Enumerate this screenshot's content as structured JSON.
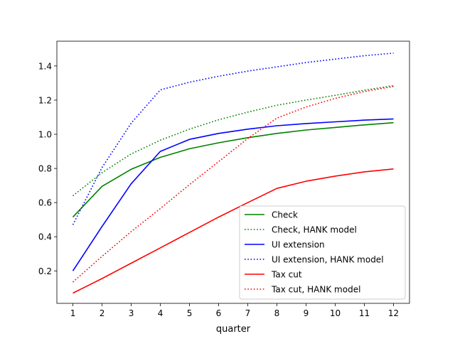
{
  "chart_data": {
    "type": "line",
    "xlabel": "quarter",
    "ylabel": "",
    "title": "",
    "x": [
      1,
      2,
      3,
      4,
      5,
      6,
      7,
      8,
      9,
      10,
      11,
      12
    ],
    "xticks": [
      "1",
      "2",
      "3",
      "4",
      "5",
      "6",
      "7",
      "8",
      "9",
      "10",
      "11",
      "12"
    ],
    "yticks": [
      "0.2",
      "0.4",
      "0.6",
      "0.8",
      "1.0",
      "1.2",
      "1.4"
    ],
    "xlim": [
      0.45,
      12.55
    ],
    "ylim": [
      0.01,
      1.545
    ],
    "grid": false,
    "legend_location": "lower-right",
    "series": [
      {
        "name": "Check",
        "color": "#008000",
        "style": "solid",
        "values": [
          0.515,
          0.695,
          0.795,
          0.865,
          0.915,
          0.95,
          0.98,
          1.005,
          1.025,
          1.04,
          1.055,
          1.068
        ]
      },
      {
        "name": "Check, HANK model",
        "color": "#008000",
        "style": "dotted",
        "values": [
          0.64,
          0.775,
          0.885,
          0.965,
          1.03,
          1.085,
          1.13,
          1.17,
          1.2,
          1.228,
          1.258,
          1.285
        ]
      },
      {
        "name": "UI extension",
        "color": "#0000ff",
        "style": "solid",
        "values": [
          0.2,
          0.46,
          0.71,
          0.9,
          0.97,
          1.005,
          1.03,
          1.05,
          1.063,
          1.073,
          1.083,
          1.09
        ]
      },
      {
        "name": "UI extension, HANK model",
        "color": "#0000ff",
        "style": "dotted",
        "values": [
          0.47,
          0.805,
          1.065,
          1.26,
          1.305,
          1.34,
          1.37,
          1.395,
          1.42,
          1.44,
          1.46,
          1.475
        ]
      },
      {
        "name": "Tax cut",
        "color": "#ff0000",
        "style": "solid",
        "values": [
          0.07,
          0.155,
          0.245,
          0.335,
          0.425,
          0.515,
          0.6,
          0.683,
          0.725,
          0.755,
          0.78,
          0.797
        ]
      },
      {
        "name": "Tax cut, HANK model",
        "color": "#ff0000",
        "style": "dotted",
        "values": [
          0.135,
          0.285,
          0.43,
          0.565,
          0.705,
          0.84,
          0.975,
          1.095,
          1.16,
          1.21,
          1.25,
          1.28
        ]
      }
    ]
  }
}
